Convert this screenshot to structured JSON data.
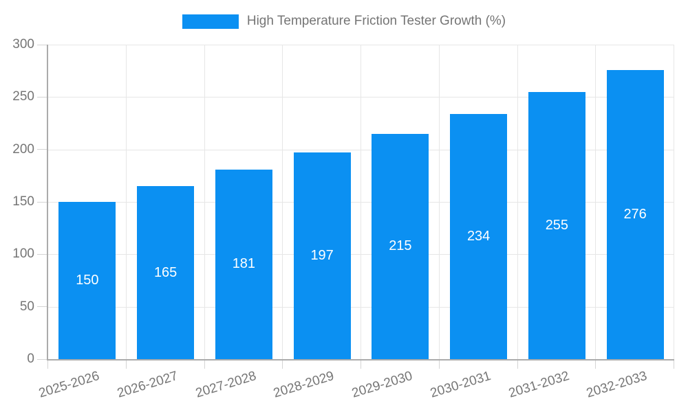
{
  "legend": {
    "label": "High Temperature Friction Tester Growth (%)"
  },
  "colors": {
    "bar": "#0b90f2",
    "axis": "#ababab",
    "grid": "#e6e6e6",
    "tick": "#d4d4d4",
    "text": "#757575",
    "bar_label": "#ffffff",
    "background": "#ffffff"
  },
  "chart_data": {
    "type": "bar",
    "title": "High Temperature Friction Tester Growth (%)",
    "series_name": "High Temperature Friction Tester Growth (%)",
    "categories": [
      "2025-2026",
      "2026-2027",
      "2027-2028",
      "2028-2029",
      "2029-2030",
      "2030-2031",
      "2031-2032",
      "2032-2033"
    ],
    "values": [
      150,
      165,
      181,
      197,
      215,
      234,
      255,
      276
    ],
    "xlabel": "",
    "ylabel": "",
    "ylim": [
      0,
      300
    ],
    "yticks": [
      0,
      50,
      100,
      150,
      200,
      250,
      300
    ],
    "grid": true,
    "legend_position": "top-center",
    "value_labels_position": "inside-center",
    "x_tick_label_rotation_deg": -17
  }
}
